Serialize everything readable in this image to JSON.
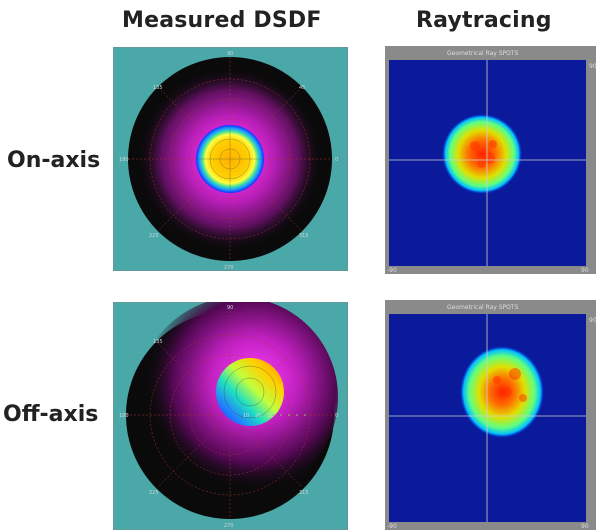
{
  "headers": {
    "measured": "Measured DSDF",
    "raytracing": "Raytracing"
  },
  "rows": {
    "on_axis": "On-axis",
    "off_axis": "Off-axis"
  },
  "polar": {
    "angles": {
      "a0": "0",
      "a45": "45",
      "a90": "90",
      "a135": "135",
      "a180": "180",
      "a225": "225",
      "a270": "270",
      "a315": "315"
    },
    "inner_rings": [
      "10",
      "20",
      "30"
    ]
  },
  "ray": {
    "title": "Geometrical Ray SPOTS",
    "axis_left": "-90",
    "axis_right": "90",
    "axis_top_right": "90"
  },
  "colors": {
    "polar_bg": "#4aa8a8",
    "disk": "#0a0a0a",
    "glow": "#c020c0",
    "ray_bg": "#0a1a9a",
    "frame": "#8a8a8a"
  }
}
